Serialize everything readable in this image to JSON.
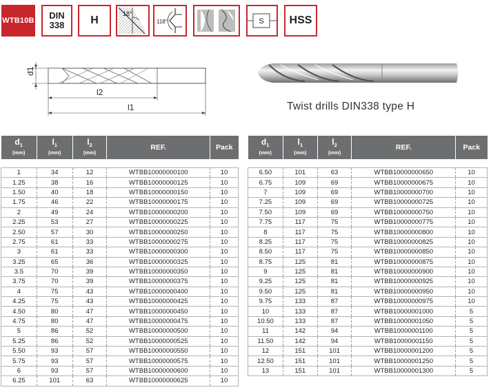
{
  "badges": {
    "code": "WTB10B",
    "din_line1": "DIN",
    "din_line2": "338",
    "type": "H",
    "angle1": "18°",
    "angle2": "118°",
    "shank": "S",
    "material": "HSS"
  },
  "diagram": {
    "d1": "d1",
    "l2": "l2",
    "l1": "l1"
  },
  "caption": "Twist drills DIN338 type H",
  "table": {
    "headers": {
      "d1": "d",
      "d1_sub": "1",
      "d1_unit": "(mm)",
      "l1": "l",
      "l1_sub": "1",
      "l1_unit": "(mm)",
      "l2": "l",
      "l2_sub": "2",
      "l2_unit": "(mm)",
      "ref": "REF.",
      "pack": "Pack"
    },
    "left_rows": [
      [
        "1",
        "34",
        "12",
        "WTBB10000000100",
        "10"
      ],
      [
        "1.25",
        "38",
        "16",
        "WTBB10000000125",
        "10"
      ],
      [
        "1.50",
        "40",
        "18",
        "WTBB10000000150",
        "10"
      ],
      [
        "1.75",
        "46",
        "22",
        "WTBB10000000175",
        "10"
      ],
      [
        "2",
        "49",
        "24",
        "WTBB10000000200",
        "10"
      ],
      [
        "2.25",
        "53",
        "27",
        "WTBB10000000225",
        "10"
      ],
      [
        "2.50",
        "57",
        "30",
        "WTBB10000000250",
        "10"
      ],
      [
        "2.75",
        "61",
        "33",
        "WTBB10000000275",
        "10"
      ],
      [
        "3",
        "61",
        "33",
        "WTBB10000000300",
        "10"
      ],
      [
        "3.25",
        "65",
        "36",
        "WTBB10000000325",
        "10"
      ],
      [
        "3.5",
        "70",
        "39",
        "WTBB10000000350",
        "10"
      ],
      [
        "3.75",
        "70",
        "39",
        "WTBB10000000375",
        "10"
      ],
      [
        "4",
        "75",
        "43",
        "WTBB10000000400",
        "10"
      ],
      [
        "4.25",
        "75",
        "43",
        "WTBB10000000425",
        "10"
      ],
      [
        "4.50",
        "80",
        "47",
        "WTBB10000000450",
        "10"
      ],
      [
        "4.75",
        "80",
        "47",
        "WTBB10000000475",
        "10"
      ],
      [
        "5",
        "86",
        "52",
        "WTBB10000000500",
        "10"
      ],
      [
        "5.25",
        "86",
        "52",
        "WTBB10000000525",
        "10"
      ],
      [
        "5.50",
        "93",
        "57",
        "WTBB10000000550",
        "10"
      ],
      [
        "5.75",
        "93",
        "57",
        "WTBB10000000575",
        "10"
      ],
      [
        "6",
        "93",
        "57",
        "WTBB10000000600",
        "10"
      ],
      [
        "6.25",
        "101",
        "63",
        "WTBB10000000625",
        "10"
      ]
    ],
    "right_rows": [
      [
        "6.50",
        "101",
        "63",
        "WTBB10000000650",
        "10"
      ],
      [
        "6.75",
        "109",
        "69",
        "WTBB10000000675",
        "10"
      ],
      [
        "7",
        "109",
        "69",
        "WTBB10000000700",
        "10"
      ],
      [
        "7.25",
        "109",
        "69",
        "WTBB10000000725",
        "10"
      ],
      [
        "7.50",
        "109",
        "69",
        "WTBB10000000750",
        "10"
      ],
      [
        "7.75",
        "117",
        "75",
        "WTBB10000000775",
        "10"
      ],
      [
        "8",
        "117",
        "75",
        "WTBB10000000800",
        "10"
      ],
      [
        "8.25",
        "117",
        "75",
        "WTBB10000000825",
        "10"
      ],
      [
        "8.50",
        "117",
        "75",
        "WTBB10000000850",
        "10"
      ],
      [
        "8.75",
        "125",
        "81",
        "WTBB10000000875",
        "10"
      ],
      [
        "9",
        "125",
        "81",
        "WTBB10000000900",
        "10"
      ],
      [
        "9.25",
        "125",
        "81",
        "WTBB10000000925",
        "10"
      ],
      [
        "9.50",
        "125",
        "81",
        "WTBB10000000950",
        "10"
      ],
      [
        "9.75",
        "133",
        "87",
        "WTBB10000000975",
        "10"
      ],
      [
        "10",
        "133",
        "87",
        "WTBB10000001000",
        "5"
      ],
      [
        "10.50",
        "133",
        "87",
        "WTBB10000001050",
        "5"
      ],
      [
        "11",
        "142",
        "94",
        "WTBB10000001100",
        "5"
      ],
      [
        "11.50",
        "142",
        "94",
        "WTBB10000001150",
        "5"
      ],
      [
        "12",
        "151",
        "101",
        "WTBB10000001200",
        "5"
      ],
      [
        "12.50",
        "151",
        "101",
        "WTBB10000001250",
        "5"
      ],
      [
        "13",
        "151",
        "101",
        "WTBB10000001300",
        "5"
      ]
    ]
  },
  "colors": {
    "accent": "#c9262c",
    "header_bg": "#6d6e70"
  }
}
